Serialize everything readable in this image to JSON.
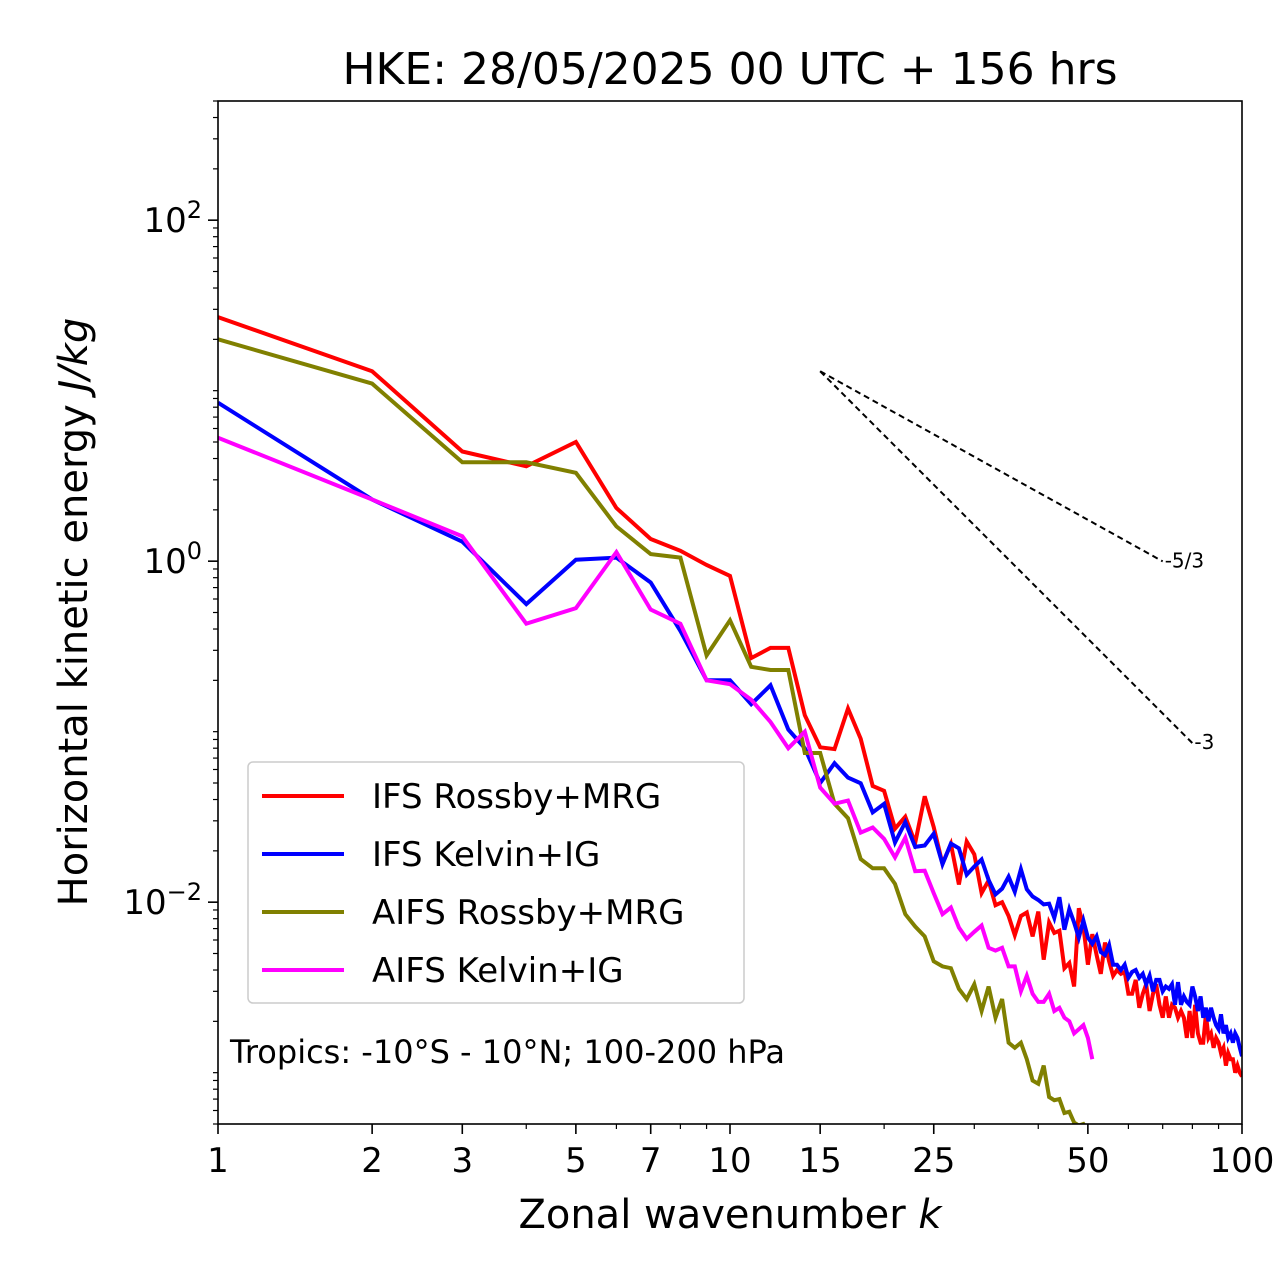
{
  "chart_data": {
    "type": "line",
    "title": "HKE: 28/05/2025 00 UTC + 156 hrs",
    "xlabel": "Zonal wavenumber k",
    "ylabel": "Horizontal kinetic energy J/kg",
    "xscale": "log",
    "yscale": "log",
    "xlim": [
      1,
      100
    ],
    "ylim": [
      0.0005,
      500
    ],
    "x_ticks": [
      {
        "value": 1,
        "label": "1"
      },
      {
        "value": 2,
        "label": "2"
      },
      {
        "value": 3,
        "label": "3"
      },
      {
        "value": 5,
        "label": "5"
      },
      {
        "value": 7,
        "label": "7"
      },
      {
        "value": 10,
        "label": "10"
      },
      {
        "value": 15,
        "label": "15"
      },
      {
        "value": 25,
        "label": "25"
      },
      {
        "value": 50,
        "label": "50"
      },
      {
        "value": 100,
        "label": "100"
      }
    ],
    "y_ticks": [
      {
        "value": 0.01,
        "base": "10",
        "exp": "−2"
      },
      {
        "value": 1,
        "base": "10",
        "exp": "0"
      },
      {
        "value": 100,
        "base": "10",
        "exp": "2"
      }
    ],
    "grid": false,
    "legend_position": "lower-left",
    "annotation": "Tropics: -10°S - 10°N; 100-200 hPa",
    "reference_lines": [
      {
        "label": "-5/3",
        "slope": -1.6667,
        "x": [
          15,
          70
        ],
        "y0": 13
      },
      {
        "label": "-3",
        "slope": -3,
        "x": [
          15,
          80
        ],
        "y0": 13
      }
    ],
    "series": [
      {
        "name": "IFS Rossby+MRG",
        "color": "#ff0000",
        "values": [
          27.0,
          13.0,
          4.4,
          3.6,
          5.0,
          2.05,
          1.35,
          1.15,
          0.95,
          0.82,
          0.27,
          0.31,
          0.31,
          0.125,
          0.081,
          0.079,
          0.1368,
          0.091,
          0.048,
          0.045,
          0.027,
          0.0317,
          0.0223,
          0.0418,
          0.0276,
          0.0168,
          0.0219,
          0.0127,
          0.0227,
          0.0191,
          0.0113,
          0.0134,
          0.0096,
          0.01,
          0.0083,
          0.0064,
          0.0083,
          0.0087,
          0.0063,
          0.0088,
          0.0046,
          0.0076,
          0.0066,
          0.0068,
          0.0041,
          0.0044,
          0.0032,
          0.0092,
          0.0072,
          0.0043,
          0.0065,
          0.0049,
          0.0038,
          0.0058,
          0.0045,
          0.0037,
          0.004,
          0.0038,
          0.0039,
          0.0029,
          0.0029,
          0.0035,
          0.0024,
          0.0029,
          0.0033,
          0.0023,
          0.0029,
          0.0033,
          0.0025,
          0.0021,
          0.0028,
          0.0021,
          0.0025,
          0.0024,
          0.0021,
          0.0023,
          0.0021,
          0.0016,
          0.0023,
          0.0016,
          0.0025,
          0.0017,
          0.0015,
          0.0015,
          0.0022,
          0.0016,
          0.0017,
          0.0014,
          0.0016,
          0.0015,
          0.0013,
          0.0014,
          0.0011,
          0.0013,
          0.0012,
          0.0012,
          0.001,
          0.0011,
          0.001,
          0.00095
        ]
      },
      {
        "name": "IFS Kelvin+IG",
        "color": "#0000ff",
        "values": [
          8.5,
          2.3,
          1.3,
          0.56,
          1.02,
          1.05,
          0.75,
          0.39,
          0.2,
          0.2,
          0.145,
          0.187,
          0.103,
          0.08,
          0.05,
          0.0653,
          0.0538,
          0.0498,
          0.0336,
          0.0377,
          0.0224,
          0.0295,
          0.0211,
          0.0215,
          0.0252,
          0.0167,
          0.0221,
          0.0207,
          0.0145,
          0.0162,
          0.0178,
          0.0135,
          0.0111,
          0.012,
          0.0141,
          0.0115,
          0.0156,
          0.0119,
          0.0108,
          0.0103,
          0.0097,
          0.0098,
          0.0081,
          0.0107,
          0.0069,
          0.0091,
          0.0076,
          0.0062,
          0.0078,
          0.0062,
          0.0057,
          0.0063,
          0.0051,
          0.0049,
          0.0056,
          0.0043,
          0.0043,
          0.004,
          0.0043,
          0.0036,
          0.0039,
          0.004,
          0.0036,
          0.0038,
          0.0033,
          0.0037,
          0.003,
          0.0035,
          0.0035,
          0.003,
          0.0032,
          0.0031,
          0.0033,
          0.0025,
          0.0034,
          0.0025,
          0.0028,
          0.0026,
          0.0025,
          0.0032,
          0.0028,
          0.0023,
          0.0028,
          0.0021,
          0.0024,
          0.002,
          0.0024,
          0.0021,
          0.0019,
          0.0018,
          0.0022,
          0.0017,
          0.0019,
          0.0016,
          0.0017,
          0.0015,
          0.0017,
          0.0016,
          0.0014,
          0.00125
        ]
      },
      {
        "name": "AIFS Rossby+MRG",
        "color": "#808000",
        "values": [
          20.0,
          11.0,
          3.8,
          3.8,
          3.3,
          1.6,
          1.1,
          1.05,
          0.28,
          0.45,
          0.24,
          0.23,
          0.23,
          0.075,
          0.075,
          0.0378,
          0.0311,
          0.0179,
          0.0158,
          0.0158,
          0.0128,
          0.0085,
          0.0072,
          0.0063,
          0.0045,
          0.0042,
          0.0041,
          0.0031,
          0.0027,
          0.0033,
          0.0023,
          0.0032,
          0.0021,
          0.0027,
          0.0015,
          0.0014,
          0.0015,
          0.0012,
          0.0009,
          0.00086,
          0.0011,
          0.00072,
          0.00069,
          0.0007,
          0.00058,
          0.00059,
          0.00051,
          0.00049,
          0.0005,
          0.00046
        ]
      },
      {
        "name": "AIFS Kelvin+IG",
        "color": "#ff00ff",
        "values": [
          5.3,
          2.3,
          1.4,
          0.43,
          0.53,
          1.13,
          0.52,
          0.43,
          0.2,
          0.19,
          0.154,
          0.114,
          0.08,
          0.1,
          0.047,
          0.0378,
          0.0394,
          0.0256,
          0.0274,
          0.0235,
          0.0183,
          0.0239,
          0.0152,
          0.0153,
          0.0113,
          0.0085,
          0.0093,
          0.0071,
          0.0061,
          0.0067,
          0.0073,
          0.0054,
          0.0052,
          0.0054,
          0.0042,
          0.0042,
          0.003,
          0.0037,
          0.0029,
          0.0026,
          0.0026,
          0.0029,
          0.0023,
          0.0024,
          0.0021,
          0.002,
          0.0017,
          0.0018,
          0.0019,
          0.0016,
          0.0012
        ]
      }
    ]
  }
}
